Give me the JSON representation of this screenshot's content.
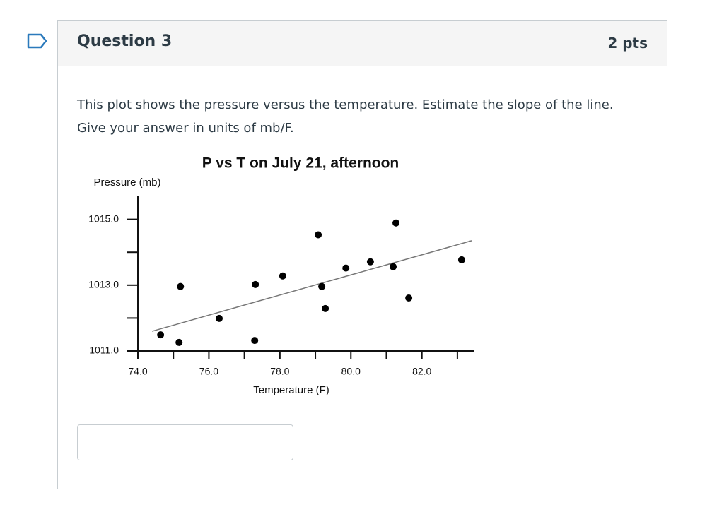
{
  "header": {
    "title": "Question 3",
    "points": "2 pts"
  },
  "body": {
    "lines": [
      "This plot shows the pressure versus the temperature. Estimate the slope of the line.",
      "Give your answer in units of mb/F."
    ]
  },
  "chart_data": {
    "type": "scatter",
    "title": "P vs T on July 21, afternoon",
    "y_label": "Pressure (mb)",
    "x_label": "Temperature (F)",
    "x": [
      74.64,
      75.16,
      75.2,
      76.29,
      77.29,
      77.31,
      78.08,
      79.08,
      79.18,
      79.28,
      79.86,
      80.55,
      81.19,
      81.27,
      81.63,
      83.12
    ],
    "y": [
      1011.49,
      1011.26,
      1012.96,
      1011.99,
      1011.32,
      1013.02,
      1013.28,
      1014.53,
      1012.96,
      1012.29,
      1013.52,
      1013.71,
      1013.56,
      1014.89,
      1012.61,
      1013.77
    ],
    "color": "#000000",
    "trendline": {
      "x": [
        74.4,
        83.4
      ],
      "y": [
        1011.6,
        1014.35
      ],
      "color": "#777777"
    },
    "xlim": [
      74,
      83.46
    ],
    "ylim": [
      1011,
      1015.7
    ],
    "xticks": [
      {
        "value": 74,
        "label": "74.0"
      },
      {
        "value": 76,
        "label": "76.0"
      },
      {
        "value": 78,
        "label": "78.0"
      },
      {
        "value": 80,
        "label": "80.0"
      },
      {
        "value": 82,
        "label": "82.0"
      }
    ],
    "xminor": [
      75,
      77,
      79,
      81,
      83
    ],
    "yticks": [
      {
        "value": 1011,
        "label": "1011.0"
      },
      {
        "value": 1013,
        "label": "1013.0"
      },
      {
        "value": 1015,
        "label": "1015.0"
      }
    ],
    "yminor": [
      1012,
      1014
    ]
  }
}
